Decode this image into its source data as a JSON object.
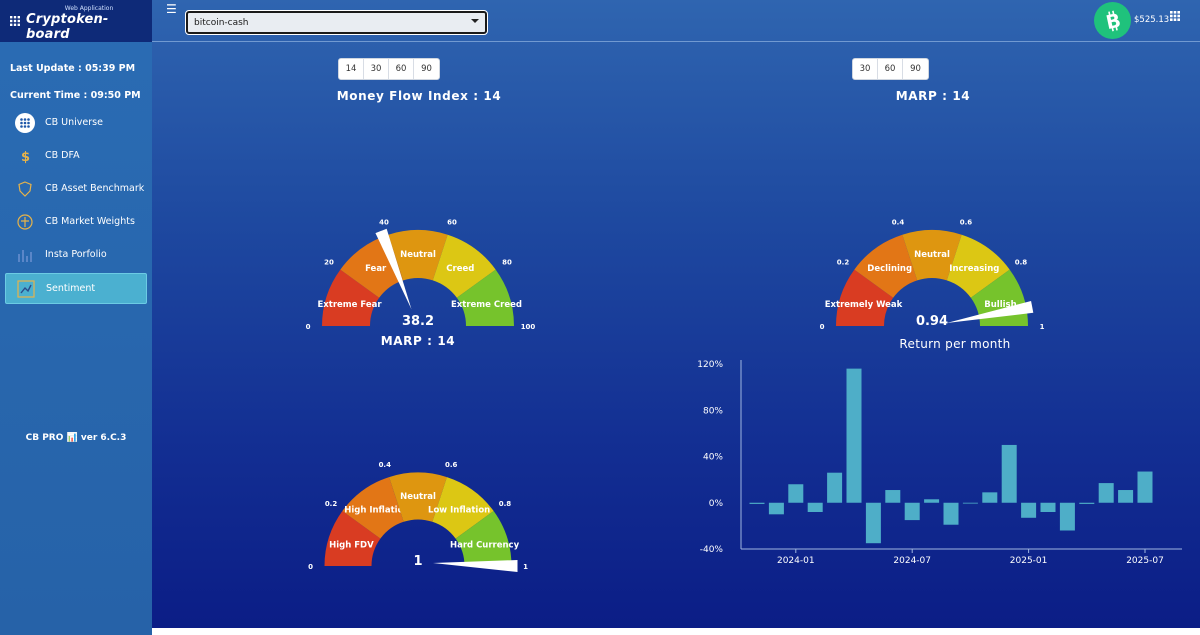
{
  "header": {
    "logo_sub": "Web Application",
    "logo_main": "Cryptoken-board",
    "coin_select": "bitcoin-cash",
    "balance": "$525.13"
  },
  "sidebar": {
    "last_update": "Last Update : 05:39 PM",
    "current_time": "Current Time : 09:50 PM",
    "items": [
      {
        "label": "CB Universe",
        "icon": "grid-icon"
      },
      {
        "label": "CB DFA",
        "icon": "dollar-icon"
      },
      {
        "label": "CB Asset Benchmark",
        "icon": "shield-icon"
      },
      {
        "label": "CB Market Weights",
        "icon": "scale-icon"
      },
      {
        "label": "Insta Porfolio",
        "icon": "bar-chart-icon"
      },
      {
        "label": "Sentiment",
        "icon": "sentiment-icon"
      }
    ],
    "version": "CB PRO 📊 ver 6.C.3"
  },
  "gauges": [
    {
      "title": "Money Flow Index : 14",
      "periods": [
        "14",
        "30",
        "60",
        "90"
      ],
      "min": 0,
      "max": 100,
      "value": 38.2,
      "value_label": "38.2",
      "ticks": [
        "0",
        "20",
        "40",
        "60",
        "80",
        "100"
      ],
      "segments": [
        {
          "label": "Extreme Fear",
          "color": "#d93c22"
        },
        {
          "label": "Fear",
          "color": "#e27616"
        },
        {
          "label": "Neutral",
          "color": "#de9610"
        },
        {
          "label": "Creed",
          "color": "#dcc714"
        },
        {
          "label": "Extreme Creed",
          "color": "#76c32c"
        }
      ]
    },
    {
      "title": "MARP : 14",
      "periods": [
        "30",
        "60",
        "90"
      ],
      "min": 0,
      "max": 1,
      "value": 0.94,
      "value_label": "0.94",
      "ticks": [
        "0",
        "0.2",
        "0.4",
        "0.6",
        "0.8",
        "1"
      ],
      "segments": [
        {
          "label": "Extremely Weak",
          "color": "#d93c22"
        },
        {
          "label": "Declining",
          "color": "#e27616"
        },
        {
          "label": "Neutral",
          "color": "#de9610"
        },
        {
          "label": "Increasing",
          "color": "#dcc714"
        },
        {
          "label": "Bullish",
          "color": "#76c32c"
        }
      ]
    },
    {
      "title": "MARP : 14",
      "periods": [],
      "min": 0,
      "max": 1,
      "value": 1,
      "value_label": "1",
      "ticks": [
        "0",
        "0.2",
        "0.4",
        "0.6",
        "0.8",
        "1"
      ],
      "segments": [
        {
          "label": "High FDV",
          "color": "#d93c22"
        },
        {
          "label": "High Inflation",
          "color": "#e27616"
        },
        {
          "label": "Neutral",
          "color": "#de9610"
        },
        {
          "label": "Low Inflation",
          "color": "#dcc714"
        },
        {
          "label": "Hard Currency",
          "color": "#76c32c"
        }
      ]
    }
  ],
  "chart_data": {
    "type": "bar",
    "title": "Return per month",
    "xlabel": "",
    "ylabel": "",
    "x": [
      "2023-11",
      "2023-12",
      "2024-01",
      "2024-02",
      "2024-03",
      "2024-04",
      "2024-05",
      "2024-06",
      "2024-07",
      "2024-08",
      "2024-09",
      "2024-10",
      "2024-11",
      "2024-12",
      "2025-01",
      "2025-02",
      "2025-03",
      "2025-04",
      "2025-05",
      "2025-06",
      "2025-07"
    ],
    "values": [
      -1,
      -10,
      16,
      -8,
      26,
      116,
      -35,
      11,
      -15,
      3,
      -19,
      0,
      9,
      50,
      -13,
      -8,
      -24,
      -1,
      17,
      11,
      27
    ],
    "ylim": [
      -40,
      120
    ],
    "yticks": [
      "-40%",
      "0%",
      "40%",
      "80%",
      "120%"
    ],
    "xticks": [
      "2024-01",
      "2024-07",
      "2025-01",
      "2025-07"
    ],
    "color": "#4eaec8"
  }
}
